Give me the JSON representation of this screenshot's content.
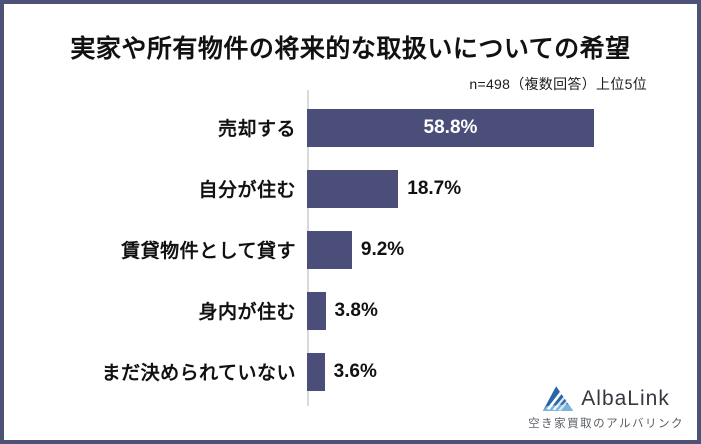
{
  "header": {
    "title": "実家や所有物件の将来的な取扱いについての希望",
    "note": "n=498（複数回答）上位5位"
  },
  "chart_data": {
    "type": "bar",
    "orientation": "horizontal",
    "title": "実家や所有物件の将来的な取扱いについての希望",
    "sample_note": "n=498（複数回答）上位5位",
    "categories": [
      "売却する",
      "自分が住む",
      "賃貸物件として貸す",
      "身内が住む",
      "まだ決められていない"
    ],
    "values": [
      58.8,
      18.7,
      9.2,
      3.8,
      3.6
    ],
    "value_labels": [
      "58.8%",
      "18.7%",
      "9.2%",
      "3.8%",
      "3.6%"
    ],
    "xlim": [
      0,
      70
    ],
    "grid": false,
    "legend": false,
    "bar_color": "#4a4e78",
    "axis_line_color": "#d9d9d9",
    "inside_label_color": "#ffffff",
    "outside_label_color": "#111111"
  },
  "logo": {
    "name": "AlbaLink",
    "tagline": "空き家買取のアルバリンク",
    "icon": "mountain-triangle-icon",
    "icon_color_dark": "#2a64ab",
    "icon_color_light": "#79b3dc",
    "text_color": "#34383f"
  },
  "frame": {
    "border_color": "#4e5276",
    "background": "#ffffff"
  }
}
